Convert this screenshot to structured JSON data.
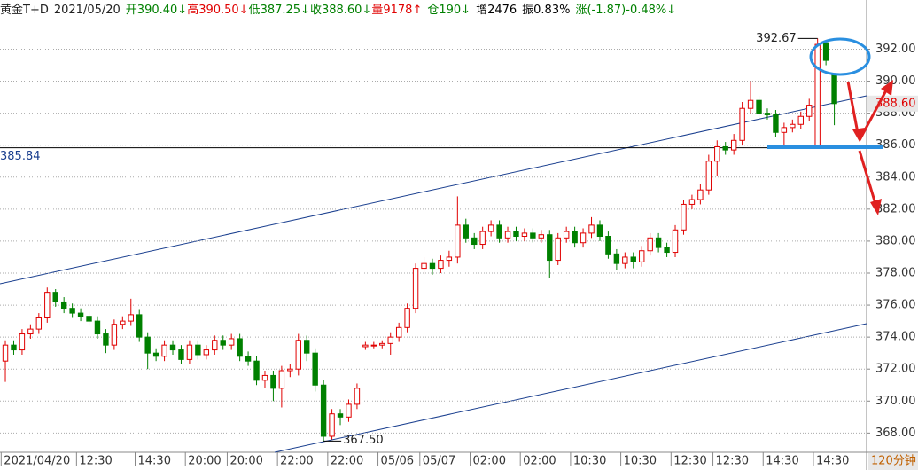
{
  "chart_data": {
    "type": "candlestick",
    "header": {
      "instrument": "黄金T+D",
      "date": "2021/05/20",
      "fields": [
        {
          "text": "开390.40↓",
          "color": "#008000"
        },
        {
          "text": "高390.50↓",
          "color": "#e00000"
        },
        {
          "text": "低387.25↓",
          "color": "#008000"
        },
        {
          "text": "收388.60↓",
          "color": "#008000"
        },
        {
          "text": "量9178↑",
          "color": "#e00000"
        },
        {
          "text": "仓190↓",
          "color": "#008000"
        },
        {
          "text": "增2476",
          "color": "#000000"
        },
        {
          "text": "振0.83%",
          "color": "#000000"
        },
        {
          "text": "涨(-1.87)-0.48%↓",
          "color": "#008000"
        }
      ]
    },
    "categories": [
      "2021/04/20",
      null,
      null,
      null,
      null,
      null,
      null,
      null,
      null,
      "12:30",
      null,
      null,
      null,
      null,
      null,
      null,
      "14:30",
      null,
      null,
      null,
      null,
      null,
      "20:00",
      null,
      null,
      null,
      null,
      "20:00",
      null,
      null,
      null,
      null,
      null,
      "22:00",
      null,
      null,
      null,
      null,
      null,
      "22:00",
      null,
      null,
      null,
      null,
      null,
      "05/06",
      null,
      null,
      null,
      null,
      "05/07",
      null,
      null,
      null,
      null,
      null,
      "02:00",
      null,
      null,
      null,
      null,
      null,
      "02:00",
      null,
      null,
      null,
      null,
      null,
      "10:30",
      null,
      null,
      null,
      null,
      null,
      "10:30",
      null,
      null,
      null,
      null,
      null,
      "12:30",
      null,
      null,
      null,
      null,
      "12:30",
      null,
      null,
      null,
      null,
      null,
      "14:30",
      null,
      null,
      null,
      null,
      null,
      "14:30",
      null,
      null
    ],
    "open": [
      372.5,
      373.5,
      373.2,
      374.2,
      374.5,
      375.2,
      376.8,
      376.2,
      375.8,
      375.5,
      375.3,
      375.0,
      374.2,
      373.5,
      374.8,
      375.0,
      375.4,
      374.0,
      373.0,
      372.8,
      373.5,
      373.2,
      372.6,
      373.5,
      372.9,
      373.2,
      373.8,
      373.5,
      373.9,
      372.8,
      372.5,
      371.3,
      371.6,
      370.8,
      371.9,
      372.0,
      373.8,
      373.0,
      371.0,
      367.8,
      369.2,
      369.0,
      369.8,
      373.4,
      373.5,
      373.5,
      373.6,
      374.0,
      374.6,
      375.8,
      378.3,
      378.6,
      378.3,
      378.8,
      379.0,
      381.0,
      380.2,
      379.8,
      380.6,
      381.0,
      380.2,
      380.6,
      380.3,
      380.5,
      380.2,
      380.4,
      378.8,
      380.2,
      380.6,
      379.9,
      380.5,
      381.0,
      380.3,
      379.2,
      378.6,
      379.0,
      378.7,
      379.4,
      380.2,
      379.6,
      379.3,
      380.7,
      382.3,
      382.6,
      383.2,
      385.0,
      385.9,
      385.7,
      386.3,
      388.3,
      388.8,
      388.0,
      387.9,
      386.8,
      387.1,
      387.3,
      387.8,
      386.0,
      392.4,
      390.4
    ],
    "high": [
      373.8,
      373.8,
      374.5,
      374.8,
      375.5,
      377.1,
      377.0,
      376.5,
      376.1,
      375.8,
      375.6,
      375.3,
      374.5,
      375.1,
      375.3,
      376.4,
      375.7,
      374.3,
      373.3,
      373.8,
      373.8,
      373.5,
      373.8,
      373.8,
      373.5,
      374.1,
      374.1,
      374.2,
      374.2,
      373.1,
      372.8,
      371.9,
      371.9,
      372.2,
      372.3,
      374.2,
      374.1,
      373.3,
      371.3,
      369.5,
      369.5,
      370.1,
      371.1,
      373.7,
      373.7,
      373.8,
      374.3,
      374.9,
      376.1,
      378.6,
      379.0,
      378.9,
      379.1,
      379.4,
      382.8,
      381.4,
      380.5,
      380.9,
      381.3,
      381.3,
      380.9,
      380.9,
      380.8,
      380.8,
      380.7,
      380.7,
      380.5,
      380.9,
      380.9,
      380.8,
      381.5,
      381.3,
      380.6,
      379.5,
      379.3,
      379.3,
      379.7,
      380.5,
      380.5,
      379.9,
      381.0,
      382.6,
      382.9,
      383.6,
      385.4,
      386.3,
      386.2,
      386.7,
      388.7,
      390.0,
      389.1,
      388.3,
      388.2,
      387.4,
      387.6,
      388.1,
      388.9,
      392.67,
      392.5,
      390.5
    ],
    "low": [
      371.2,
      372.9,
      372.9,
      373.9,
      374.2,
      374.9,
      375.9,
      375.5,
      375.2,
      375.0,
      374.7,
      373.9,
      373.0,
      373.2,
      374.5,
      374.7,
      373.7,
      372.0,
      372.5,
      372.5,
      372.9,
      372.3,
      372.3,
      372.6,
      372.6,
      372.9,
      373.2,
      373.2,
      372.5,
      372.2,
      371.0,
      370.8,
      370.0,
      369.6,
      371.5,
      371.6,
      372.5,
      370.6,
      367.5,
      367.6,
      368.5,
      368.7,
      369.5,
      373.2,
      373.3,
      373.3,
      372.9,
      373.7,
      374.3,
      375.5,
      377.9,
      377.9,
      378.0,
      378.4,
      378.6,
      379.9,
      379.5,
      379.5,
      380.3,
      379.9,
      379.9,
      380.0,
      380.0,
      379.9,
      379.9,
      377.7,
      378.5,
      379.9,
      379.6,
      379.6,
      380.2,
      380.0,
      378.9,
      378.2,
      378.3,
      378.3,
      378.4,
      379.1,
      379.3,
      379.0,
      379.0,
      380.4,
      382.0,
      382.3,
      382.9,
      384.1,
      385.4,
      385.4,
      386.0,
      388.0,
      387.7,
      387.6,
      386.5,
      386.0,
      386.8,
      387.0,
      387.5,
      385.9,
      391.0,
      387.25
    ],
    "close": [
      373.5,
      373.2,
      374.2,
      374.5,
      375.2,
      376.8,
      376.2,
      375.8,
      375.5,
      375.3,
      375.0,
      374.2,
      373.5,
      374.8,
      375.0,
      375.4,
      374.0,
      373.0,
      372.8,
      373.5,
      373.2,
      372.6,
      373.5,
      372.9,
      373.2,
      373.8,
      373.5,
      373.9,
      372.8,
      372.5,
      371.3,
      371.6,
      370.8,
      371.9,
      372.0,
      373.8,
      373.0,
      371.0,
      367.8,
      369.2,
      369.0,
      369.8,
      370.8,
      373.5,
      373.5,
      373.6,
      374.0,
      374.6,
      375.8,
      378.3,
      378.6,
      378.3,
      378.8,
      379.0,
      381.0,
      380.2,
      379.8,
      380.6,
      381.0,
      380.2,
      380.6,
      380.3,
      380.5,
      380.2,
      380.4,
      378.8,
      380.2,
      380.6,
      379.9,
      380.5,
      381.0,
      380.3,
      379.2,
      378.6,
      379.0,
      378.7,
      379.4,
      380.2,
      379.6,
      379.3,
      380.7,
      382.3,
      382.6,
      383.2,
      385.0,
      385.9,
      385.7,
      386.3,
      388.3,
      388.8,
      388.0,
      387.9,
      386.8,
      387.1,
      387.3,
      387.8,
      388.5,
      392.3,
      391.3,
      388.6
    ],
    "up_color": "#e00000",
    "down_color": "#008000",
    "ylim": [
      366.8,
      394.3
    ],
    "yticks": [
      {
        "value": 368,
        "label": "368.00"
      },
      {
        "value": 370,
        "label": "370.00"
      },
      {
        "value": 372,
        "label": "372.00"
      },
      {
        "value": 374,
        "label": "374.00"
      },
      {
        "value": 376,
        "label": "376.00"
      },
      {
        "value": 378,
        "label": "378.00"
      },
      {
        "value": 380,
        "label": "380.00"
      },
      {
        "value": 382,
        "label": "382.00"
      },
      {
        "value": 384,
        "label": "384.00"
      },
      {
        "value": 386,
        "label": "386.00"
      },
      {
        "value": 388,
        "label": "388.00"
      },
      {
        "value": 390,
        "label": "390.00"
      },
      {
        "value": 392,
        "label": "392.00"
      }
    ],
    "grid": true,
    "hline": {
      "value": 385.84,
      "label": "385.84"
    },
    "annotations": [
      {
        "value": 392.67,
        "label": "392.67"
      },
      {
        "value": 367.5,
        "label": "367.50"
      }
    ],
    "last_price": {
      "value": 388.6,
      "label": "388.60"
    },
    "period_label": "120分钟"
  }
}
